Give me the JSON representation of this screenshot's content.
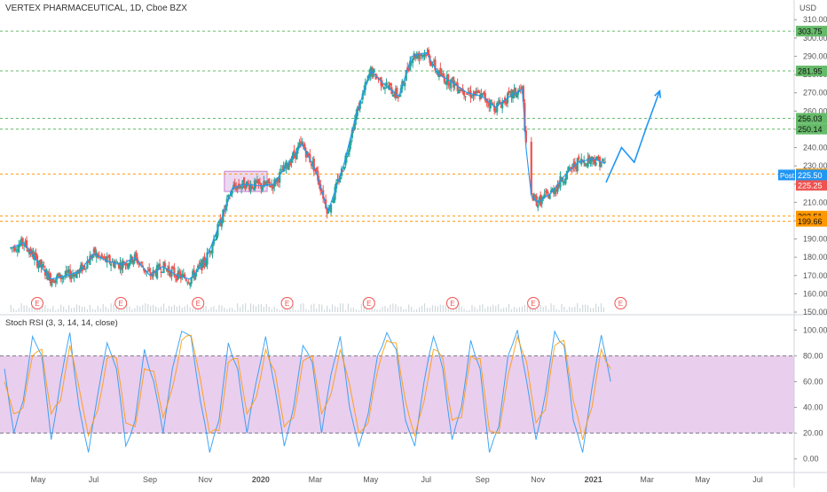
{
  "header": {
    "symbol": "VERTEX PHARMACEUTICAL, 1D, Cboe BZX",
    "currency": "USD"
  },
  "indicator": {
    "label": "Stoch RSI (3, 3, 14, 14, close)"
  },
  "colors": {
    "up": "#26a69a",
    "down": "#ef5350",
    "ma": "#2196f3",
    "projection": "#2196f3",
    "rsi_k": "#2196f3",
    "rsi_d": "#ff9800",
    "rsi_band": "#e1bee7",
    "consolidation_box": "#ce93d8"
  },
  "chart_data": [
    {
      "type": "line",
      "title": "VERTEX PHARMACEUTICAL, 1D, Cboe BZX",
      "x_ticks": [
        "May",
        "Jul",
        "Sep",
        "Nov",
        "2020",
        "Mar",
        "May",
        "Jul",
        "Sep",
        "Nov",
        "2021",
        "Mar",
        "May",
        "Jul"
      ],
      "y_ticks": [
        150,
        160,
        170,
        180,
        190,
        200,
        210,
        220,
        230,
        240,
        250,
        260,
        270,
        280,
        290,
        300,
        310
      ],
      "ylim": [
        150,
        314
      ],
      "levels": [
        {
          "label": "303.75",
          "value": 303.75,
          "color": "#66bb6a"
        },
        {
          "label": "281.95",
          "value": 281.95,
          "color": "#66bb6a"
        },
        {
          "label": "256.03",
          "value": 256.03,
          "color": "#66bb6a"
        },
        {
          "label": "250.14",
          "value": 250.14,
          "color": "#66bb6a"
        },
        {
          "label": "225.57",
          "value": 225.57,
          "color": "#ff9800"
        },
        {
          "label": "202.51",
          "value": 202.51,
          "color": "#ff9800"
        },
        {
          "label": "199.66",
          "value": 199.66,
          "color": "#ff9800"
        }
      ],
      "price_tags": [
        {
          "label": "225.25",
          "value": 225.25,
          "color": "#ef5350"
        }
      ],
      "post_tag": {
        "label": "Post",
        "value": "225.50"
      },
      "earnings_markers": [
        "E",
        "E",
        "E",
        "E",
        "E",
        "E",
        "E",
        "E"
      ],
      "series": [
        {
          "name": "price",
          "x": [
            "2019-04-01",
            "2019-04-15",
            "2019-05-01",
            "2019-05-15",
            "2019-06-01",
            "2019-06-15",
            "2019-07-01",
            "2019-07-15",
            "2019-08-01",
            "2019-08-15",
            "2019-09-01",
            "2019-09-15",
            "2019-10-01",
            "2019-10-15",
            "2019-11-01",
            "2019-11-15",
            "2019-12-01",
            "2019-12-15",
            "2020-01-01",
            "2020-01-15",
            "2020-02-01",
            "2020-02-15",
            "2020-03-01",
            "2020-03-15",
            "2020-04-01",
            "2020-04-15",
            "2020-05-01",
            "2020-05-15",
            "2020-06-01",
            "2020-06-15",
            "2020-07-01",
            "2020-07-15",
            "2020-08-01",
            "2020-08-15",
            "2020-09-01",
            "2020-09-15",
            "2020-10-01",
            "2020-10-15",
            "2020-10-22",
            "2020-11-01",
            "2020-11-15",
            "2020-12-01",
            "2020-12-15",
            "2021-01-01",
            "2021-01-15"
          ],
          "values": [
            185,
            188,
            177,
            168,
            170,
            172,
            182,
            178,
            176,
            180,
            170,
            175,
            170,
            168,
            178,
            196,
            218,
            220,
            219,
            220,
            232,
            242,
            228,
            205,
            230,
            258,
            282,
            275,
            268,
            290,
            292,
            280,
            275,
            270,
            268,
            262,
            268,
            272,
            215,
            210,
            215,
            225,
            232,
            234,
            231
          ]
        },
        {
          "name": "projection",
          "x": [
            "2021-01-15",
            "2021-02-01",
            "2021-02-15",
            "2021-03-01",
            "2021-03-15"
          ],
          "values": [
            221,
            240,
            232,
            252,
            271
          ]
        }
      ]
    },
    {
      "type": "line",
      "title": "Stoch RSI (3, 3, 14, 14, close)",
      "y_ticks": [
        "0.00",
        "20.00",
        "40.00",
        "60.00",
        "80.00",
        "100.00"
      ],
      "ylim": [
        -5,
        105
      ],
      "band": [
        20,
        80
      ],
      "series": [
        {
          "name": "%K",
          "values": [
            70,
            20,
            45,
            95,
            80,
            15,
            60,
            98,
            40,
            5,
            50,
            90,
            70,
            10,
            30,
            85,
            60,
            20,
            70,
            99,
            95,
            45,
            5,
            30,
            90,
            70,
            20,
            60,
            95,
            55,
            10,
            40,
            88,
            75,
            20,
            65,
            95,
            40,
            10,
            35,
            80,
            98,
            85,
            30,
            10,
            60,
            95,
            70,
            15,
            40,
            92,
            70,
            5,
            25,
            80,
            100,
            60,
            15,
            50,
            99,
            88,
            30,
            5,
            55,
            96,
            60
          ]
        },
        {
          "name": "%D",
          "values": [
            60,
            35,
            40,
            80,
            85,
            35,
            45,
            88,
            55,
            18,
            38,
            78,
            78,
            28,
            25,
            70,
            68,
            32,
            55,
            92,
            96,
            62,
            20,
            22,
            75,
            78,
            35,
            48,
            85,
            68,
            25,
            32,
            76,
            80,
            35,
            50,
            85,
            58,
            20,
            28,
            68,
            92,
            90,
            45,
            18,
            45,
            85,
            78,
            30,
            32,
            80,
            78,
            22,
            20,
            65,
            95,
            75,
            28,
            38,
            88,
            92,
            45,
            15,
            40,
            85,
            70
          ]
        }
      ]
    }
  ]
}
